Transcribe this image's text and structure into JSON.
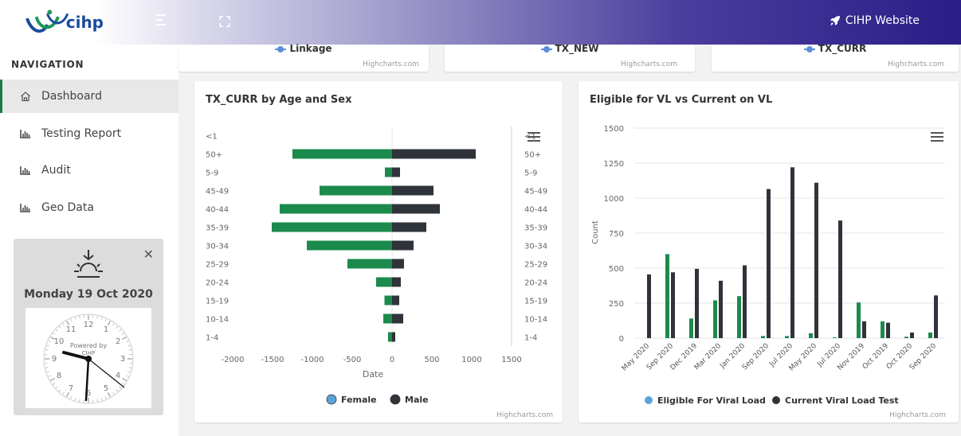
{
  "header": {
    "logo_text": "cihp",
    "site_link": "CIHP Website"
  },
  "sidebar": {
    "heading": "NAVIGATION",
    "items": [
      {
        "label": "Dashboard",
        "icon": "home-icon",
        "active": true
      },
      {
        "label": "Testing Report",
        "icon": "bar-chart-icon"
      },
      {
        "label": "Audit",
        "icon": "bar-chart-icon"
      },
      {
        "label": "Geo Data",
        "icon": "bar-chart-icon"
      }
    ],
    "clock": {
      "date": "Monday 19 Oct 2020",
      "powered_by": "Powered by",
      "brand": "CIHP"
    }
  },
  "top_cards": [
    {
      "legend": "Linkage",
      "credits": "Highcharts.com"
    },
    {
      "legend": "TX_NEW",
      "credits": "Highcharts.com"
    },
    {
      "legend": "TX_CURR",
      "credits": "Highcharts.com"
    }
  ],
  "chart_data": [
    {
      "type": "bar",
      "orientation": "horizontal",
      "title": "TX_CURR by Age and Sex",
      "categories": [
        "<1",
        "50+",
        "5-9",
        "45-49",
        "40-44",
        "35-39",
        "30-34",
        "25-29",
        "20-24",
        "15-19",
        "10-14",
        "1-4"
      ],
      "series": [
        {
          "name": "Female",
          "values": [
            0,
            -1250,
            -90,
            -910,
            -1410,
            -1510,
            -1070,
            -560,
            -200,
            -95,
            -110,
            -50
          ]
        },
        {
          "name": "Male",
          "values": [
            0,
            1050,
            100,
            520,
            600,
            430,
            270,
            150,
            110,
            90,
            140,
            40
          ]
        }
      ],
      "xlabel": "Date",
      "xlim": [
        -2000,
        1500
      ],
      "xticks": [
        "-2000",
        "-1500",
        "-1000",
        "-500",
        "0",
        "500",
        "1000",
        "1500"
      ],
      "colors": [
        "#1b8a4c",
        "#2f333a"
      ],
      "legend_colors": [
        "#5aa4d8",
        "#2f333a"
      ],
      "legend_position": "bottom",
      "credits": "Highcharts.com"
    },
    {
      "type": "bar",
      "title": "Eligible for VL vs Current on VL",
      "categories": [
        "May 2020",
        "Sep 2020",
        "Dec 2019",
        "Mar 2020",
        "Jan 2020",
        "Sep 2020",
        "Jul 2020",
        "May 2020",
        "Jul 2020",
        "Nov 2019",
        "Oct 2019",
        "Oct 2020",
        "Sep 2020"
      ],
      "series": [
        {
          "name": "Eligible For Viral Load",
          "values": [
            0,
            600,
            140,
            270,
            300,
            15,
            15,
            35,
            5,
            255,
            120,
            10,
            40
          ]
        },
        {
          "name": "Current Viral Load Test",
          "values": [
            455,
            470,
            495,
            410,
            520,
            1065,
            1220,
            1110,
            840,
            120,
            110,
            40,
            305
          ]
        }
      ],
      "ylabel": "Count",
      "ylim": [
        0,
        1500
      ],
      "yticks": [
        "0",
        "250",
        "500",
        "750",
        "1000",
        "1250",
        "1500"
      ],
      "colors": [
        "#1b8a4c",
        "#2f333a"
      ],
      "legend_colors": [
        "#5aa4d8",
        "#2f333a"
      ],
      "legend_position": "bottom",
      "grid": true,
      "credits": "Highcharts.com"
    }
  ]
}
